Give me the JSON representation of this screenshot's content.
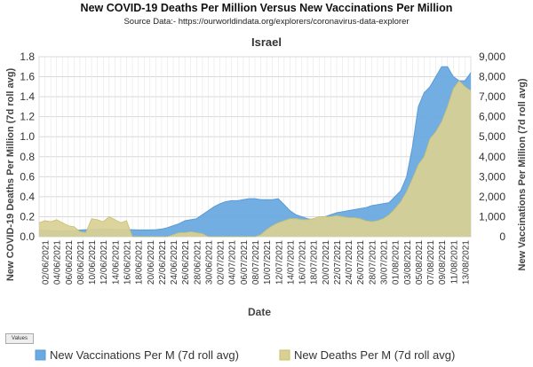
{
  "chart_data": {
    "type": "area",
    "title": "New COVID-19 Deaths Per Million  Versus  New Vaccinations  Per Million",
    "subtitle": "Source Data:- https://ourworldindata.org/explorers/coronavirus-data-explorer",
    "plot_title": "Israel",
    "xlabel": "Date",
    "ylabel_left": "New COVID-19 Deaths Per Million (7d roll avg)",
    "ylabel_right": "New Vaccinations Per Million (7d roll avg)",
    "ylim_left": [
      0,
      1.8
    ],
    "ylim_right": [
      0,
      9000
    ],
    "yticks_left": [
      "0.0",
      "0.2",
      "0.4",
      "0.6",
      "0.8",
      "1.0",
      "1.2",
      "1.4",
      "1.6",
      "1.8"
    ],
    "yticks_right": [
      "0",
      "1,000",
      "2,000",
      "3,000",
      "4,000",
      "5,000",
      "6,000",
      "7,000",
      "8,000",
      "9,000"
    ],
    "grid": true,
    "legend_position": "bottom",
    "x_tick_labels": [
      "02/06/2021",
      "04/06/2021",
      "06/06/2021",
      "08/06/2021",
      "10/06/2021",
      "12/06/2021",
      "14/06/2021",
      "16/06/2021",
      "18/06/2021",
      "20/06/2021",
      "22/06/2021",
      "24/06/2021",
      "26/06/2021",
      "28/06/2021",
      "30/06/2021",
      "02/07/2021",
      "04/07/2021",
      "06/07/2021",
      "08/07/2021",
      "10/07/2021",
      "12/07/2021",
      "14/07/2021",
      "16/07/2021",
      "18/07/2021",
      "20/07/2021",
      "22/07/2021",
      "24/07/2021",
      "26/07/2021",
      "28/07/2021",
      "30/07/2021",
      "01/08/2021",
      "03/08/2021",
      "05/08/2021",
      "07/08/2021",
      "09/08/2021",
      "11/08/2021",
      "13/08/2021"
    ],
    "x": [
      "01/06/2021",
      "02/06/2021",
      "03/06/2021",
      "04/06/2021",
      "05/06/2021",
      "06/06/2021",
      "07/06/2021",
      "08/06/2021",
      "09/06/2021",
      "10/06/2021",
      "11/06/2021",
      "12/06/2021",
      "13/06/2021",
      "14/06/2021",
      "15/06/2021",
      "16/06/2021",
      "17/06/2021",
      "18/06/2021",
      "19/06/2021",
      "20/06/2021",
      "21/06/2021",
      "22/06/2021",
      "23/06/2021",
      "24/06/2021",
      "25/06/2021",
      "26/06/2021",
      "27/06/2021",
      "28/06/2021",
      "29/06/2021",
      "30/06/2021",
      "01/07/2021",
      "02/07/2021",
      "03/07/2021",
      "04/07/2021",
      "05/07/2021",
      "06/07/2021",
      "07/07/2021",
      "08/07/2021",
      "09/07/2021",
      "10/07/2021",
      "11/07/2021",
      "12/07/2021",
      "13/07/2021",
      "14/07/2021",
      "15/07/2021",
      "16/07/2021",
      "17/07/2021",
      "18/07/2021",
      "19/07/2021",
      "20/07/2021",
      "21/07/2021",
      "22/07/2021",
      "23/07/2021",
      "24/07/2021",
      "25/07/2021",
      "26/07/2021",
      "27/07/2021",
      "28/07/2021",
      "29/07/2021",
      "30/07/2021",
      "31/07/2021",
      "01/08/2021",
      "02/08/2021",
      "03/08/2021",
      "04/08/2021",
      "05/08/2021",
      "06/08/2021",
      "07/08/2021",
      "08/08/2021",
      "09/08/2021",
      "10/08/2021",
      "11/08/2021",
      "12/08/2021",
      "13/08/2021",
      "14/08/2021"
    ],
    "series": [
      {
        "name": "New Vaccinations Per M (7d roll avg)",
        "axis": "right",
        "color": "#5b9bd5",
        "fill": "#6aaae0",
        "values": [
          350,
          330,
          310,
          290,
          280,
          290,
          300,
          330,
          350,
          360,
          370,
          380,
          380,
          370,
          360,
          360,
          350,
          340,
          340,
          340,
          350,
          380,
          450,
          550,
          650,
          800,
          850,
          900,
          1100,
          1300,
          1500,
          1650,
          1750,
          1800,
          1800,
          1850,
          1900,
          1900,
          1850,
          1850,
          1850,
          1900,
          1600,
          1300,
          1100,
          1000,
          900,
          850,
          900,
          1000,
          1100,
          1200,
          1250,
          1300,
          1350,
          1400,
          1450,
          1550,
          1600,
          1650,
          1700,
          2000,
          2300,
          3000,
          4500,
          6500,
          7200,
          7500,
          8000,
          8500,
          8500,
          8000,
          7800,
          7800,
          8200
        ]
      },
      {
        "name": "New Deaths Per M (7d roll avg)",
        "axis": "left",
        "color": "#c9bf6d",
        "fill": "#d9d094",
        "values": [
          0.14,
          0.16,
          0.15,
          0.17,
          0.14,
          0.11,
          0.1,
          0.05,
          0.04,
          0.18,
          0.17,
          0.15,
          0.2,
          0.17,
          0.14,
          0.16,
          0.0,
          0.0,
          0.0,
          0.0,
          0.0,
          0.0,
          0.0,
          0.02,
          0.04,
          0.04,
          0.05,
          0.04,
          0.03,
          0.0,
          0.0,
          0.0,
          0.0,
          0.0,
          0.0,
          0.0,
          0.0,
          0.0,
          0.02,
          0.07,
          0.11,
          0.14,
          0.16,
          0.18,
          0.18,
          0.17,
          0.17,
          0.18,
          0.2,
          0.2,
          0.2,
          0.21,
          0.2,
          0.19,
          0.19,
          0.18,
          0.16,
          0.15,
          0.16,
          0.18,
          0.22,
          0.28,
          0.35,
          0.45,
          0.58,
          0.72,
          0.8,
          0.98,
          1.05,
          1.15,
          1.3,
          1.48,
          1.56,
          1.5,
          1.46
        ]
      }
    ],
    "values_tag": "Values"
  }
}
